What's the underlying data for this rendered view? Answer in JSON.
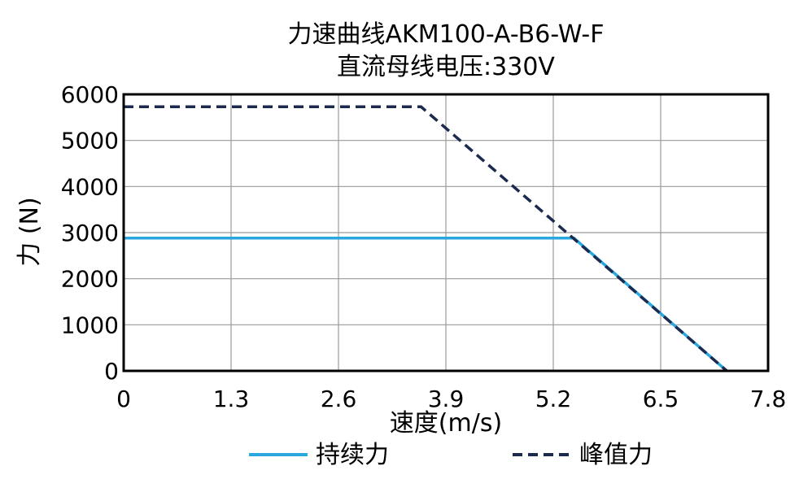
{
  "chart_data": {
    "type": "line",
    "title": "力速曲线AKM100-A-B6-W-F",
    "subtitle": "直流母线电压:330V",
    "xlabel": "速度(m/s)",
    "ylabel": "力 (N)",
    "xlim": [
      0,
      7.8
    ],
    "ylim": [
      0,
      6000
    ],
    "xticks": [
      0,
      1.3,
      2.6,
      3.9,
      5.2,
      6.5,
      7.8
    ],
    "xtick_labels": [
      "0",
      "1.3",
      "2.6",
      "3.9",
      "5.2",
      "6.5",
      "7.8"
    ],
    "yticks": [
      0,
      1000,
      2000,
      3000,
      4000,
      5000,
      6000
    ],
    "ytick_labels": [
      "0",
      "1000",
      "2000",
      "3000",
      "4000",
      "5000",
      "6000"
    ],
    "grid": true,
    "legend_position": "bottom",
    "series": [
      {
        "name": "持续力",
        "color": "#29a8e0",
        "style": "solid",
        "points": [
          [
            0,
            2880
          ],
          [
            5.45,
            2880
          ],
          [
            7.3,
            0
          ]
        ]
      },
      {
        "name": "峰值力",
        "color": "#1c2a4e",
        "style": "dashed",
        "points": [
          [
            0,
            5730
          ],
          [
            3.6,
            5730
          ],
          [
            7.3,
            0
          ]
        ]
      }
    ]
  }
}
